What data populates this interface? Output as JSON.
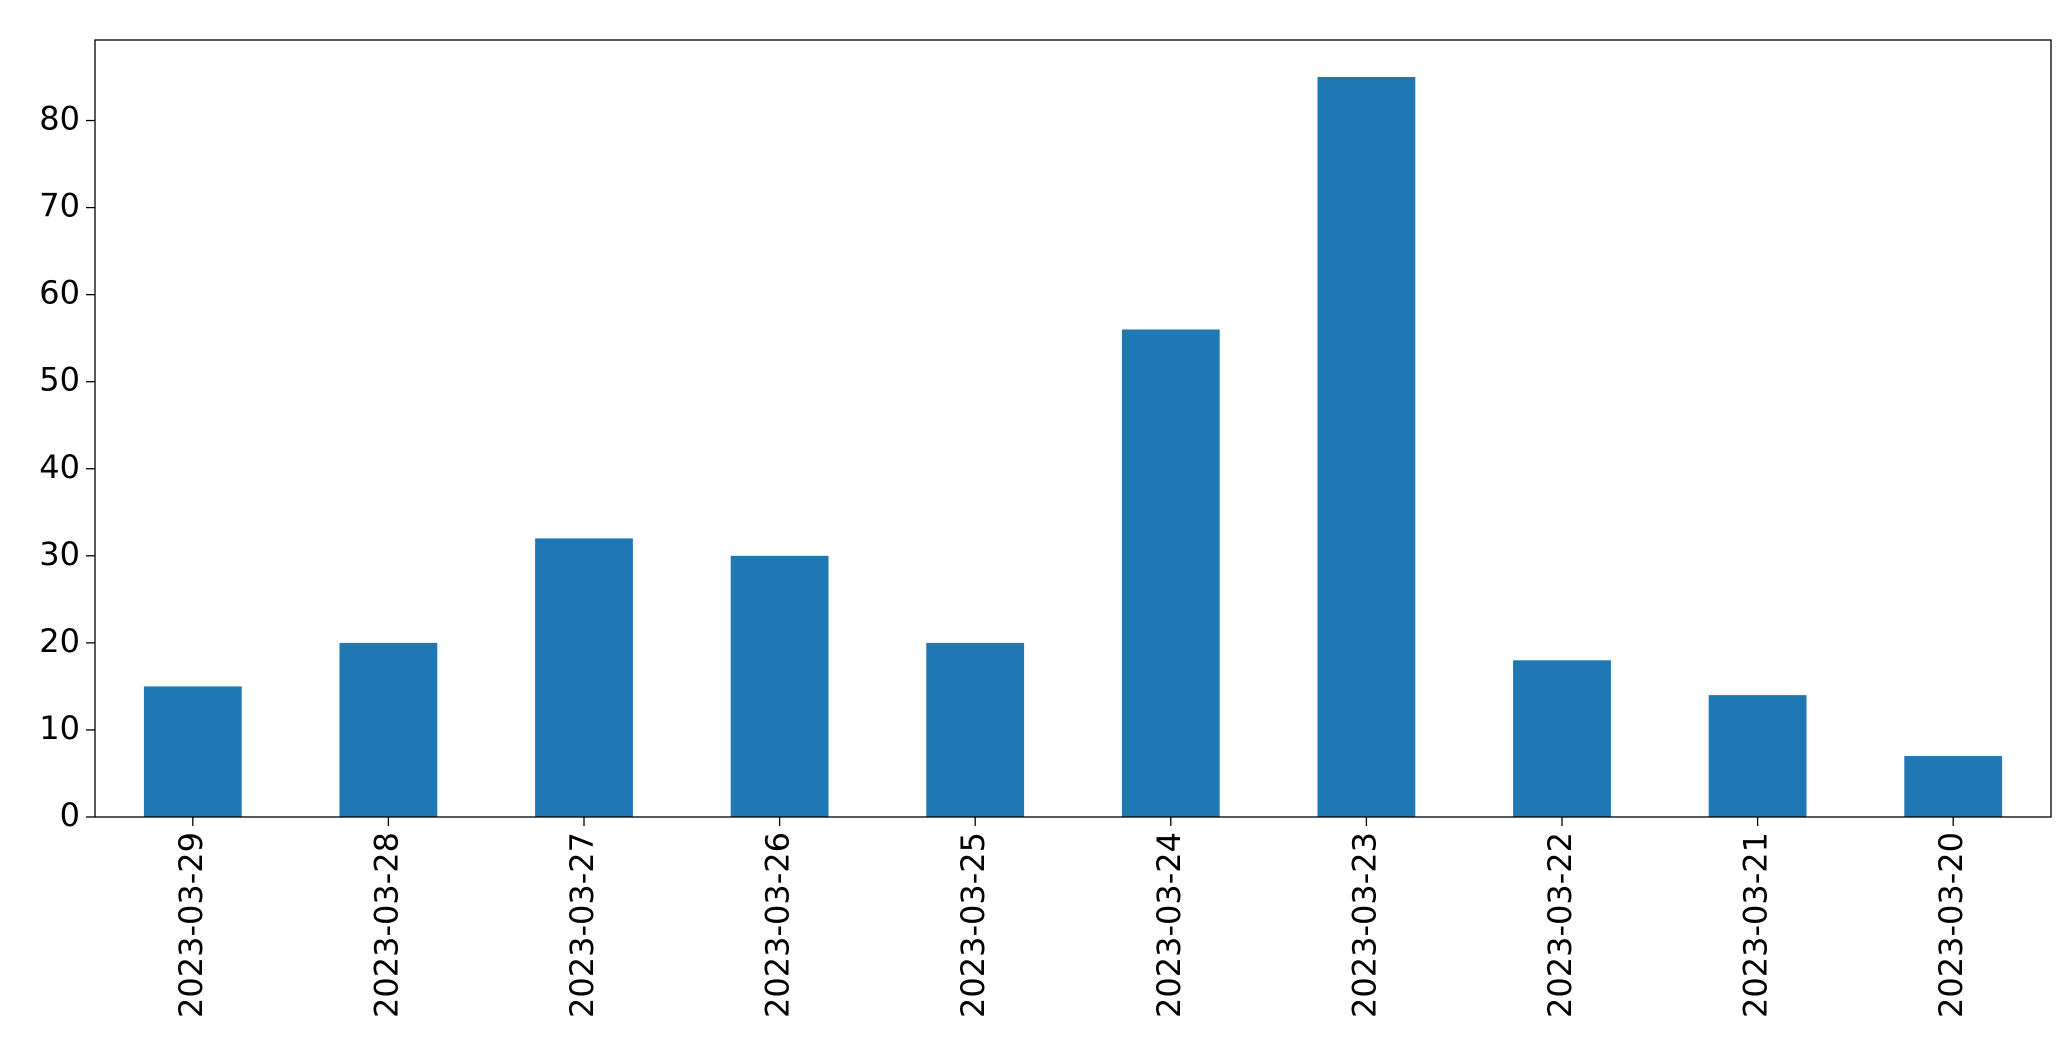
{
  "chart_data": {
    "type": "bar",
    "categories": [
      "2023-03-29",
      "2023-03-28",
      "2023-03-27",
      "2023-03-26",
      "2023-03-25",
      "2023-03-24",
      "2023-03-23",
      "2023-03-22",
      "2023-03-21",
      "2023-03-20"
    ],
    "values": [
      15,
      20,
      32,
      30,
      20,
      56,
      85,
      18,
      14,
      7
    ],
    "color": "#1f77b4",
    "ylim": [
      0,
      89.25
    ],
    "yticks": [
      0,
      10,
      20,
      30,
      40,
      50,
      60,
      70,
      80
    ],
    "grid": false
  }
}
